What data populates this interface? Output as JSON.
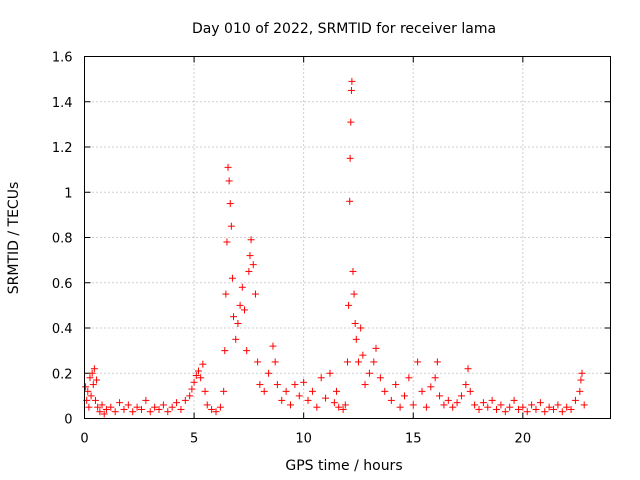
{
  "chart_data": {
    "type": "scatter",
    "title": "Day 010 of 2022, SRMTID for receiver lama",
    "xlabel": "GPS time / hours",
    "ylabel": "SRMTID / TECUs",
    "xlim": [
      0,
      24
    ],
    "ylim": [
      0,
      1.6
    ],
    "xticks": [
      "0",
      "5",
      "10",
      "15",
      "20"
    ],
    "xtick_values": [
      0,
      5,
      10,
      15,
      20
    ],
    "yticks": [
      "0",
      "0.2",
      "0.4",
      "0.6",
      "0.8",
      "1",
      "1.2",
      "1.4",
      "1.6"
    ],
    "ytick_values": [
      0,
      0.2,
      0.4,
      0.6,
      0.8,
      1.0,
      1.2,
      1.4,
      1.6
    ],
    "grid": true,
    "marker": "+",
    "color": "#ff0000",
    "series": [
      {
        "name": "SRMTID",
        "points": [
          [
            0.05,
            0.14
          ],
          [
            0.1,
            0.08
          ],
          [
            0.15,
            0.12
          ],
          [
            0.2,
            0.05
          ],
          [
            0.25,
            0.18
          ],
          [
            0.3,
            0.1
          ],
          [
            0.35,
            0.2
          ],
          [
            0.4,
            0.15
          ],
          [
            0.45,
            0.22
          ],
          [
            0.5,
            0.08
          ],
          [
            0.55,
            0.17
          ],
          [
            0.6,
            0.05
          ],
          [
            0.7,
            0.03
          ],
          [
            0.8,
            0.06
          ],
          [
            0.9,
            0.02
          ],
          [
            1.0,
            0.04
          ],
          [
            1.2,
            0.05
          ],
          [
            1.4,
            0.03
          ],
          [
            1.6,
            0.07
          ],
          [
            1.8,
            0.04
          ],
          [
            2.0,
            0.06
          ],
          [
            2.2,
            0.03
          ],
          [
            2.4,
            0.05
          ],
          [
            2.6,
            0.04
          ],
          [
            2.8,
            0.08
          ],
          [
            3.0,
            0.03
          ],
          [
            3.2,
            0.05
          ],
          [
            3.4,
            0.04
          ],
          [
            3.6,
            0.06
          ],
          [
            3.8,
            0.03
          ],
          [
            4.0,
            0.05
          ],
          [
            4.2,
            0.07
          ],
          [
            4.4,
            0.04
          ],
          [
            4.6,
            0.08
          ],
          [
            4.8,
            0.1
          ],
          [
            4.9,
            0.13
          ],
          [
            5.0,
            0.16
          ],
          [
            5.1,
            0.19
          ],
          [
            5.2,
            0.21
          ],
          [
            5.3,
            0.18
          ],
          [
            5.4,
            0.24
          ],
          [
            5.5,
            0.12
          ],
          [
            5.6,
            0.06
          ],
          [
            5.8,
            0.04
          ],
          [
            6.0,
            0.03
          ],
          [
            6.2,
            0.05
          ],
          [
            6.35,
            0.12
          ],
          [
            6.4,
            0.3
          ],
          [
            6.45,
            0.55
          ],
          [
            6.5,
            0.78
          ],
          [
            6.55,
            1.11
          ],
          [
            6.6,
            1.05
          ],
          [
            6.65,
            0.95
          ],
          [
            6.7,
            0.85
          ],
          [
            6.75,
            0.62
          ],
          [
            6.8,
            0.45
          ],
          [
            6.9,
            0.35
          ],
          [
            7.0,
            0.42
          ],
          [
            7.1,
            0.5
          ],
          [
            7.2,
            0.58
          ],
          [
            7.3,
            0.48
          ],
          [
            7.4,
            0.3
          ],
          [
            7.5,
            0.65
          ],
          [
            7.55,
            0.72
          ],
          [
            7.6,
            0.79
          ],
          [
            7.7,
            0.68
          ],
          [
            7.8,
            0.55
          ],
          [
            7.9,
            0.25
          ],
          [
            8.0,
            0.15
          ],
          [
            8.2,
            0.12
          ],
          [
            8.4,
            0.2
          ],
          [
            8.6,
            0.32
          ],
          [
            8.7,
            0.25
          ],
          [
            8.8,
            0.15
          ],
          [
            9.0,
            0.08
          ],
          [
            9.2,
            0.12
          ],
          [
            9.4,
            0.06
          ],
          [
            9.6,
            0.15
          ],
          [
            9.8,
            0.1
          ],
          [
            10.0,
            0.16
          ],
          [
            10.2,
            0.08
          ],
          [
            10.4,
            0.12
          ],
          [
            10.6,
            0.05
          ],
          [
            10.8,
            0.18
          ],
          [
            11.0,
            0.09
          ],
          [
            11.2,
            0.2
          ],
          [
            11.4,
            0.07
          ],
          [
            11.5,
            0.12
          ],
          [
            11.6,
            0.05
          ],
          [
            11.8,
            0.04
          ],
          [
            11.9,
            0.06
          ],
          [
            12.0,
            0.25
          ],
          [
            12.05,
            0.5
          ],
          [
            12.1,
            0.96
          ],
          [
            12.12,
            1.15
          ],
          [
            12.15,
            1.31
          ],
          [
            12.18,
            1.45
          ],
          [
            12.2,
            1.49
          ],
          [
            12.25,
            0.65
          ],
          [
            12.3,
            0.55
          ],
          [
            12.35,
            0.42
          ],
          [
            12.4,
            0.35
          ],
          [
            12.5,
            0.25
          ],
          [
            12.6,
            0.4
          ],
          [
            12.7,
            0.28
          ],
          [
            12.8,
            0.15
          ],
          [
            13.0,
            0.2
          ],
          [
            13.2,
            0.25
          ],
          [
            13.3,
            0.31
          ],
          [
            13.5,
            0.18
          ],
          [
            13.7,
            0.12
          ],
          [
            14.0,
            0.08
          ],
          [
            14.2,
            0.15
          ],
          [
            14.4,
            0.05
          ],
          [
            14.6,
            0.1
          ],
          [
            14.8,
            0.18
          ],
          [
            15.0,
            0.06
          ],
          [
            15.2,
            0.25
          ],
          [
            15.4,
            0.12
          ],
          [
            15.6,
            0.05
          ],
          [
            15.8,
            0.14
          ],
          [
            16.0,
            0.18
          ],
          [
            16.1,
            0.25
          ],
          [
            16.2,
            0.1
          ],
          [
            16.4,
            0.06
          ],
          [
            16.6,
            0.08
          ],
          [
            16.8,
            0.05
          ],
          [
            17.0,
            0.07
          ],
          [
            17.2,
            0.1
          ],
          [
            17.4,
            0.15
          ],
          [
            17.5,
            0.22
          ],
          [
            17.6,
            0.12
          ],
          [
            17.8,
            0.06
          ],
          [
            18.0,
            0.04
          ],
          [
            18.2,
            0.07
          ],
          [
            18.4,
            0.05
          ],
          [
            18.6,
            0.08
          ],
          [
            18.8,
            0.04
          ],
          [
            19.0,
            0.06
          ],
          [
            19.2,
            0.03
          ],
          [
            19.4,
            0.05
          ],
          [
            19.6,
            0.08
          ],
          [
            19.8,
            0.04
          ],
          [
            20.0,
            0.05
          ],
          [
            20.2,
            0.03
          ],
          [
            20.4,
            0.06
          ],
          [
            20.6,
            0.04
          ],
          [
            20.8,
            0.07
          ],
          [
            21.0,
            0.03
          ],
          [
            21.2,
            0.05
          ],
          [
            21.4,
            0.04
          ],
          [
            21.6,
            0.06
          ],
          [
            21.8,
            0.03
          ],
          [
            22.0,
            0.05
          ],
          [
            22.2,
            0.04
          ],
          [
            22.4,
            0.08
          ],
          [
            22.6,
            0.12
          ],
          [
            22.65,
            0.17
          ],
          [
            22.7,
            0.2
          ],
          [
            22.8,
            0.06
          ]
        ]
      }
    ]
  }
}
